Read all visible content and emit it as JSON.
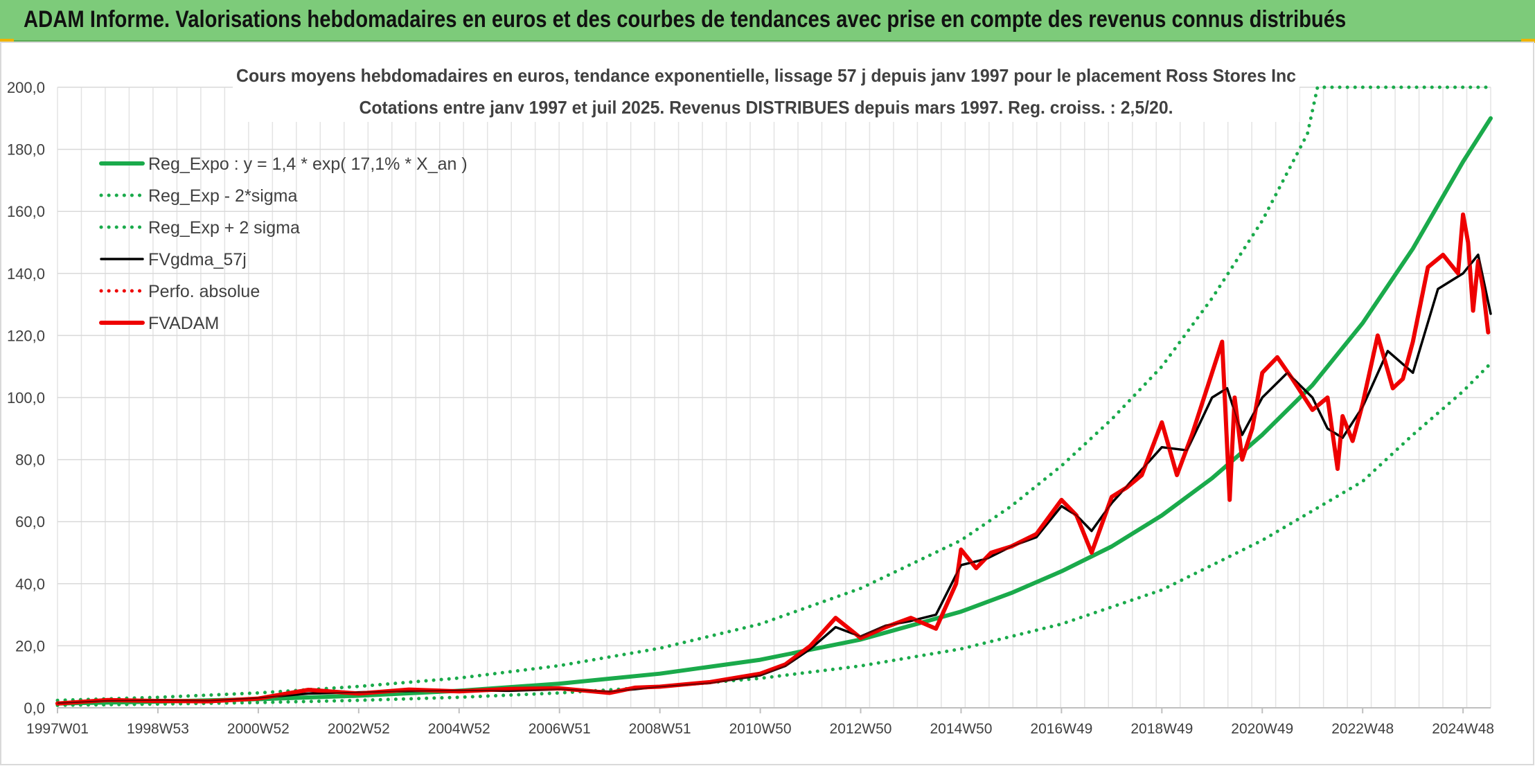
{
  "header": {
    "title": "ADAM Informe. Valorisations hebdomadaires en euros et des courbes de tendances avec prise en compte des revenus connus distribués"
  },
  "colors": {
    "banner": "#7dcb7a",
    "trend": "#1aaa4b",
    "price": "#ee0000",
    "average": "#000000",
    "grid": "#d9d9d9"
  },
  "chart_data": {
    "type": "line",
    "title": "Cours moyens hebdomadaires en euros, tendance exponentielle, lissage 57 j depuis janv 1997 pour le placement Ross Stores Inc",
    "subtitle": "Cotations entre janv 1997 et juil 2025. Revenus DISTRIBUES depuis mars 1997. Reg. croiss. : 2,5/20.",
    "xlabel": "",
    "ylabel": "",
    "ylim": [
      0,
      200
    ],
    "xlim": [
      1997.0,
      2025.55
    ],
    "grid": true,
    "legend_position": "top-left",
    "y_ticks": [
      "0,0",
      "20,0",
      "40,0",
      "60,0",
      "80,0",
      "100,0",
      "120,0",
      "140,0",
      "160,0",
      "180,0",
      "200,0"
    ],
    "x_ticks": [
      {
        "label": "1997W01",
        "x": 1997.0
      },
      {
        "label": "1998W53",
        "x": 1999.0
      },
      {
        "label": "2000W52",
        "x": 2001.0
      },
      {
        "label": "2002W52",
        "x": 2003.0
      },
      {
        "label": "2004W52",
        "x": 2005.0
      },
      {
        "label": "2006W51",
        "x": 2007.0
      },
      {
        "label": "2008W51",
        "x": 2009.0
      },
      {
        "label": "2010W50",
        "x": 2011.0
      },
      {
        "label": "2012W50",
        "x": 2013.0
      },
      {
        "label": "2014W50",
        "x": 2015.0
      },
      {
        "label": "2016W49",
        "x": 2017.0
      },
      {
        "label": "2018W49",
        "x": 2019.0
      },
      {
        "label": "2020W49",
        "x": 2021.0
      },
      {
        "label": "2022W48",
        "x": 2023.0
      },
      {
        "label": "2024W48",
        "x": 2025.0
      }
    ],
    "series": [
      {
        "name": "Reg_Expo : y = 1,4 * exp( 17,1% *  X_an )",
        "style": "solid-thick",
        "color": "#1aaa4b",
        "x": [
          1997.0,
          1999.0,
          2001.0,
          2003.0,
          2005.0,
          2007.0,
          2009.0,
          2011.0,
          2013.0,
          2015.0,
          2016.0,
          2017.0,
          2018.0,
          2019.0,
          2020.0,
          2021.0,
          2022.0,
          2023.0,
          2024.0,
          2025.0,
          2025.55
        ],
        "y": [
          1.4,
          2.0,
          2.8,
          3.9,
          5.5,
          7.8,
          11.0,
          15.5,
          22.0,
          31.0,
          37.0,
          44.0,
          52.0,
          62.0,
          74.0,
          88.0,
          104.0,
          124.0,
          148.0,
          176.0,
          190.0
        ]
      },
      {
        "name": "Reg_Exp - 2*sigma",
        "style": "dotted",
        "color": "#1aaa4b",
        "x": [
          1997.0,
          1999.0,
          2001.0,
          2003.0,
          2005.0,
          2007.0,
          2009.0,
          2011.0,
          2013.0,
          2015.0,
          2017.0,
          2019.0,
          2021.0,
          2023.0,
          2024.0,
          2025.0,
          2025.55
        ],
        "y": [
          0.8,
          1.2,
          1.7,
          2.4,
          3.4,
          4.8,
          6.8,
          9.5,
          13.5,
          19.0,
          27.0,
          38.0,
          54.0,
          73.0,
          88.0,
          102.0,
          111.0
        ]
      },
      {
        "name": "Reg_Exp + 2 sigma",
        "style": "dotted",
        "color": "#1aaa4b",
        "x": [
          1997.0,
          1999.0,
          2001.0,
          2003.0,
          2005.0,
          2007.0,
          2009.0,
          2011.0,
          2013.0,
          2015.0,
          2016.0,
          2017.0,
          2018.0,
          2019.0,
          2020.0,
          2021.0,
          2021.9,
          2022.1,
          2025.55
        ],
        "y": [
          2.4,
          3.4,
          4.8,
          6.9,
          9.6,
          13.6,
          19.2,
          27.0,
          38.5,
          54.0,
          65.0,
          78.0,
          93.0,
          110.0,
          132.0,
          157.0,
          185.0,
          200.0,
          200.0
        ]
      },
      {
        "name": "FVgdma_57j",
        "style": "solid",
        "color": "#000000",
        "x": [
          1997.0,
          1998.0,
          1999.0,
          2000.0,
          2001.0,
          2002.0,
          2003.0,
          2004.0,
          2005.0,
          2006.0,
          2007.0,
          2008.0,
          2009.0,
          2010.0,
          2011.0,
          2011.5,
          2012.0,
          2012.5,
          2013.0,
          2013.5,
          2014.0,
          2014.5,
          2015.0,
          2015.5,
          2016.0,
          2016.5,
          2017.0,
          2017.3,
          2017.6,
          2018.0,
          2018.5,
          2019.0,
          2019.5,
          2020.0,
          2020.3,
          2020.6,
          2021.0,
          2021.5,
          2022.0,
          2022.3,
          2022.6,
          2023.0,
          2023.5,
          2024.0,
          2024.5,
          2025.0,
          2025.3,
          2025.55
        ],
        "y": [
          1.5,
          2.3,
          2.5,
          2.3,
          3.2,
          4.6,
          5.0,
          5.4,
          5.6,
          5.5,
          6.0,
          5.2,
          6.8,
          8.0,
          10.5,
          13.5,
          19.0,
          26.0,
          23.0,
          26.5,
          28.0,
          30.0,
          46.0,
          48.0,
          52.0,
          55.0,
          65.0,
          62.0,
          57.0,
          66.0,
          75.0,
          84.0,
          83.0,
          100.0,
          103.0,
          88.0,
          100.0,
          108.0,
          100.0,
          90.0,
          87.0,
          97.0,
          115.0,
          108.0,
          135.0,
          140.0,
          146.0,
          127.0
        ]
      },
      {
        "name": "Perfo. absolue",
        "style": "dotted",
        "color": "#ee0000",
        "x": [],
        "y": []
      },
      {
        "name": "FVADAM",
        "style": "solid-thick",
        "color": "#ee0000",
        "x": [
          1997.0,
          1998.0,
          1999.0,
          2000.0,
          2001.0,
          2002.0,
          2003.0,
          2004.0,
          2005.0,
          2006.0,
          2007.0,
          2008.0,
          2008.5,
          2009.0,
          2010.0,
          2011.0,
          2011.5,
          2012.0,
          2012.5,
          2013.0,
          2013.5,
          2014.0,
          2014.5,
          2014.9,
          2015.0,
          2015.3,
          2015.6,
          2016.0,
          2016.5,
          2017.0,
          2017.3,
          2017.6,
          2018.0,
          2018.3,
          2018.6,
          2019.0,
          2019.3,
          2019.6,
          2020.0,
          2020.2,
          2020.35,
          2020.45,
          2020.6,
          2020.8,
          2021.0,
          2021.3,
          2021.6,
          2022.0,
          2022.3,
          2022.5,
          2022.6,
          2022.8,
          2023.0,
          2023.3,
          2023.6,
          2023.8,
          2024.0,
          2024.3,
          2024.6,
          2024.9,
          2025.0,
          2025.1,
          2025.2,
          2025.3,
          2025.4,
          2025.5
        ],
        "y": [
          1.4,
          2.5,
          2.2,
          2.1,
          3.0,
          5.8,
          4.6,
          5.9,
          5.3,
          6.1,
          6.3,
          4.8,
          6.5,
          6.8,
          8.3,
          11.0,
          14.0,
          20.0,
          29.0,
          22.5,
          26.0,
          29.0,
          25.5,
          40.0,
          51.0,
          45.0,
          50.0,
          52.0,
          56.0,
          67.0,
          62.0,
          50.0,
          68.0,
          71.0,
          75.0,
          92.0,
          75.0,
          88.0,
          108.0,
          118.0,
          67.0,
          100.0,
          80.0,
          90.0,
          108.0,
          113.0,
          106.0,
          96.0,
          100.0,
          77.0,
          94.0,
          86.0,
          98.0,
          120.0,
          103.0,
          106.0,
          118.0,
          142.0,
          146.0,
          140.0,
          159.0,
          150.0,
          128.0,
          144.0,
          135.0,
          121.0
        ]
      }
    ]
  }
}
